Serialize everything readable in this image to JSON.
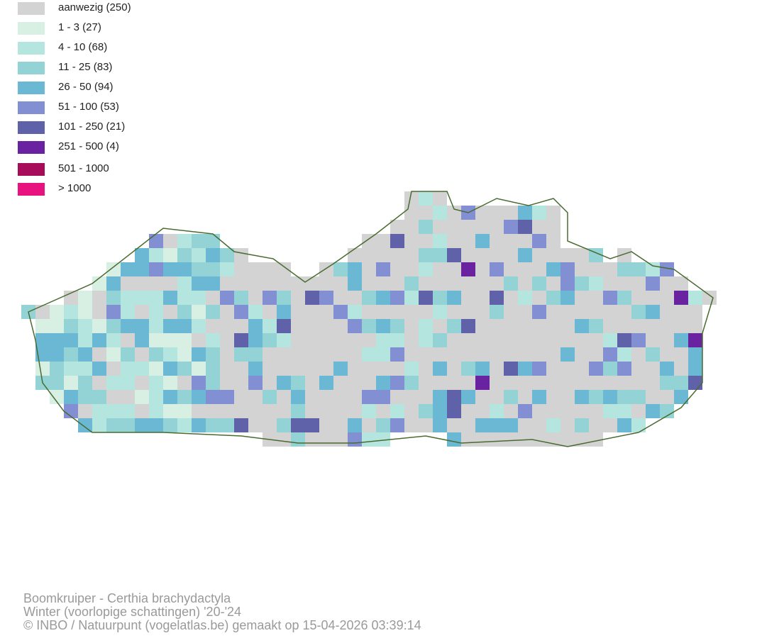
{
  "legend": [
    {
      "label": "aanwezig (250)",
      "color": "#d3d3d3"
    },
    {
      "label": "1 - 3 (27)",
      "color": "#d8f0e4"
    },
    {
      "label": "4 - 10 (68)",
      "color": "#b4e6df"
    },
    {
      "label": "11 - 25 (83)",
      "color": "#93d3d5"
    },
    {
      "label": "26 - 50 (94)",
      "color": "#6ab8d3"
    },
    {
      "label": "51 - 100 (53)",
      "color": "#828fd3"
    },
    {
      "label": "101 - 250 (21)",
      "color": "#5f62a8"
    },
    {
      "label": "251 - 500 (4)",
      "color": "#6a23a0"
    },
    {
      "label": "501 - 1000",
      "color": "#a60c5a"
    },
    {
      "label": "> 1000",
      "color": "#e8137f"
    }
  ],
  "footer": {
    "species": "Boomkruiper - Certhia brachydactyla",
    "period": "Winter (voorlopige schattingen) '20-'24",
    "credit": "© INBO / Natuurpunt (vogelatlas.be) gemaakt op 15-04-2026 03:39:14"
  }
}
